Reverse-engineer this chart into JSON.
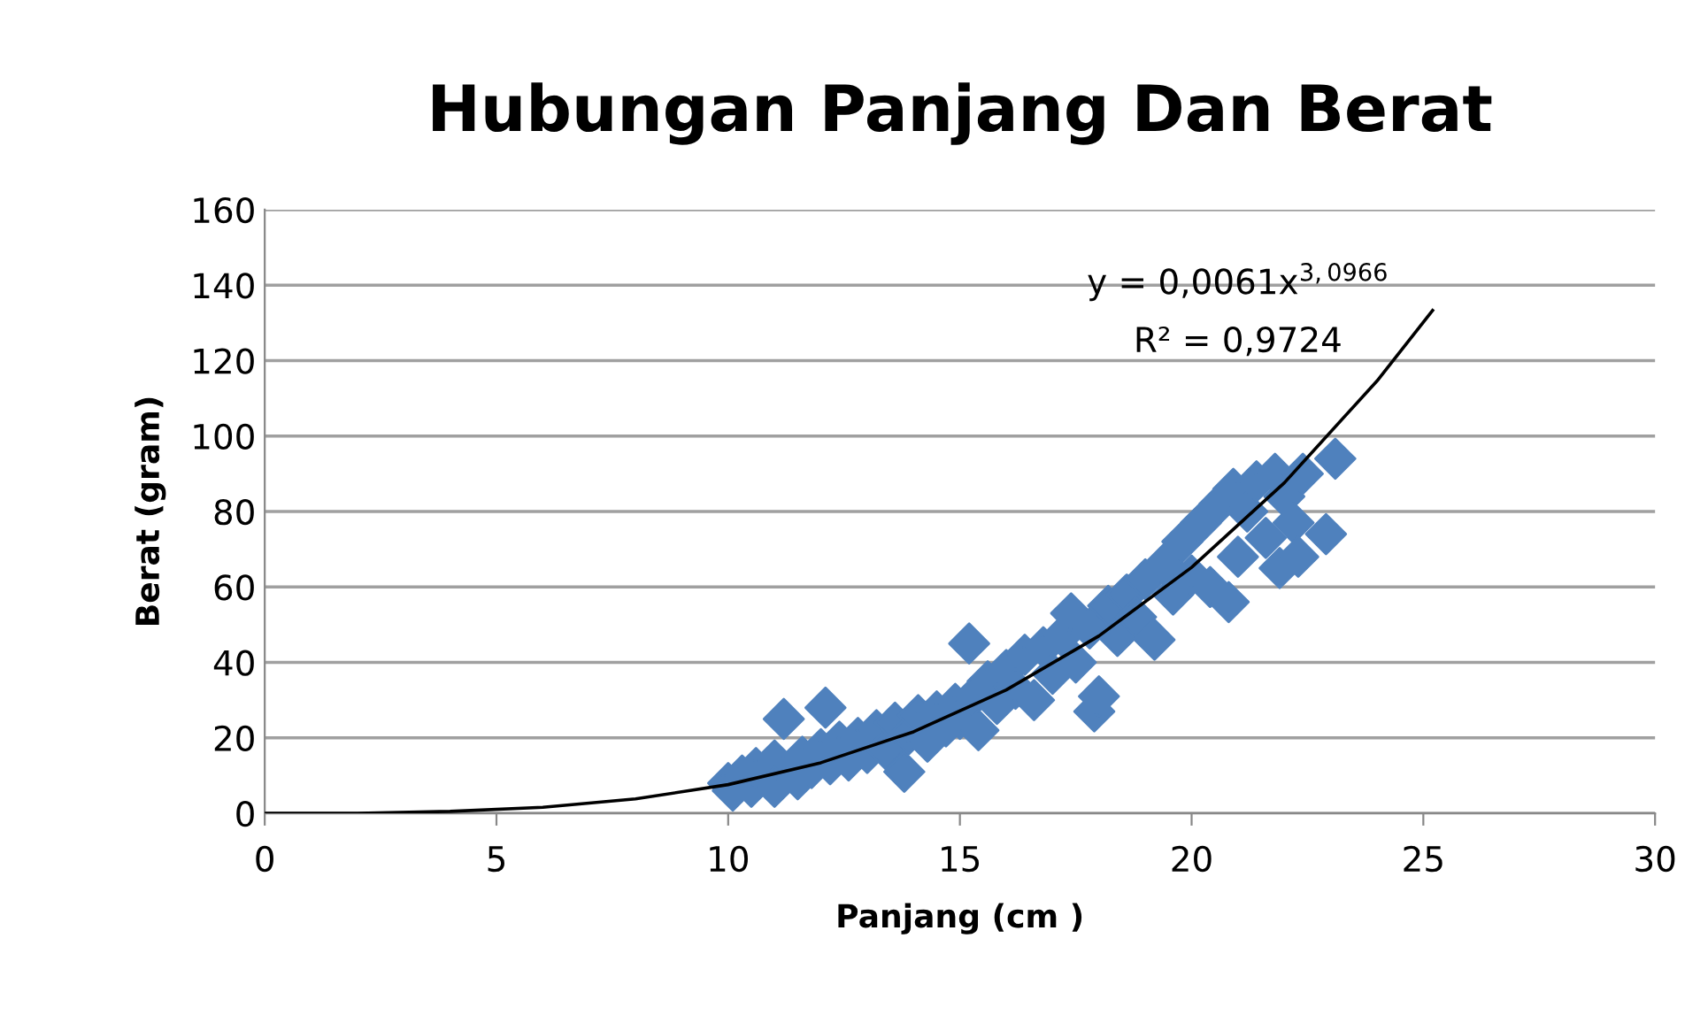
{
  "chart_data": {
    "type": "scatter",
    "title": "Hubungan Panjang Dan Berat",
    "xlabel": "Panjang (cm )",
    "ylabel": "Berat (gram)",
    "xlim": [
      0,
      30
    ],
    "xticks": [
      0,
      5,
      10,
      15,
      20,
      25,
      30
    ],
    "ylim": [
      0,
      160
    ],
    "yticks": [
      0,
      20,
      40,
      60,
      80,
      100,
      120,
      140,
      160
    ],
    "grid": "y",
    "marker": "diamond",
    "legend": false,
    "annotations": [
      "y = 0,0061x$^{3,0966}$",
      "R² = 0,9724"
    ],
    "series": [
      {
        "color": "#4f81bd",
        "x": [
          10,
          10.1,
          10.3,
          10.5,
          10.6,
          11,
          11,
          11.2,
          11.5,
          11.6,
          11.8,
          12,
          12.1,
          12.2,
          12.4,
          12.6,
          12.8,
          13,
          13.2,
          13.4,
          13.6,
          13.8,
          13.9,
          14.1,
          14.3,
          14.5,
          14.7,
          14.9,
          15,
          15.2,
          15.3,
          15.4,
          15.6,
          15.8,
          16,
          16.2,
          16.4,
          16.6,
          16.8,
          17,
          17.2,
          17.4,
          17.5,
          17.8,
          17.9,
          18,
          18.2,
          18.4,
          18.6,
          18.8,
          19,
          19.2,
          19.4,
          19.6,
          19.8,
          20,
          20.2,
          20.4,
          20.6,
          20.8,
          20.9,
          21,
          21.2,
          21.4,
          21.6,
          21.8,
          21.9,
          22,
          22.2,
          22.3,
          22.4,
          22.9,
          23.1
        ],
        "values": [
          8,
          6,
          10,
          7,
          12,
          14,
          7,
          25,
          9,
          15,
          12,
          17,
          28,
          13,
          19,
          14,
          20,
          16,
          22,
          17,
          24,
          11,
          21,
          26,
          19,
          27,
          23,
          29,
          25,
          45,
          31,
          22,
          35,
          29,
          38,
          33,
          42,
          30,
          44,
          37,
          47,
          53,
          40,
          49,
          27,
          31,
          55,
          47,
          58,
          52,
          62,
          46,
          66,
          58,
          72,
          63,
          77,
          60,
          82,
          56,
          86,
          68,
          80,
          88,
          73,
          90,
          65,
          84,
          77,
          68,
          90,
          74,
          94
        ]
      },
      {
        "type": "line",
        "color": "#000000",
        "marker": "none",
        "line_style": "solid",
        "x": [
          0,
          2,
          4,
          6,
          8,
          10,
          12,
          14,
          16,
          18,
          20,
          22,
          24,
          25.2
        ],
        "values": [
          0,
          0,
          0.5,
          1.6,
          3.8,
          7.6,
          13.4,
          21.6,
          32.7,
          47.0,
          65.2,
          87.6,
          114.6,
          133.3
        ]
      }
    ]
  }
}
